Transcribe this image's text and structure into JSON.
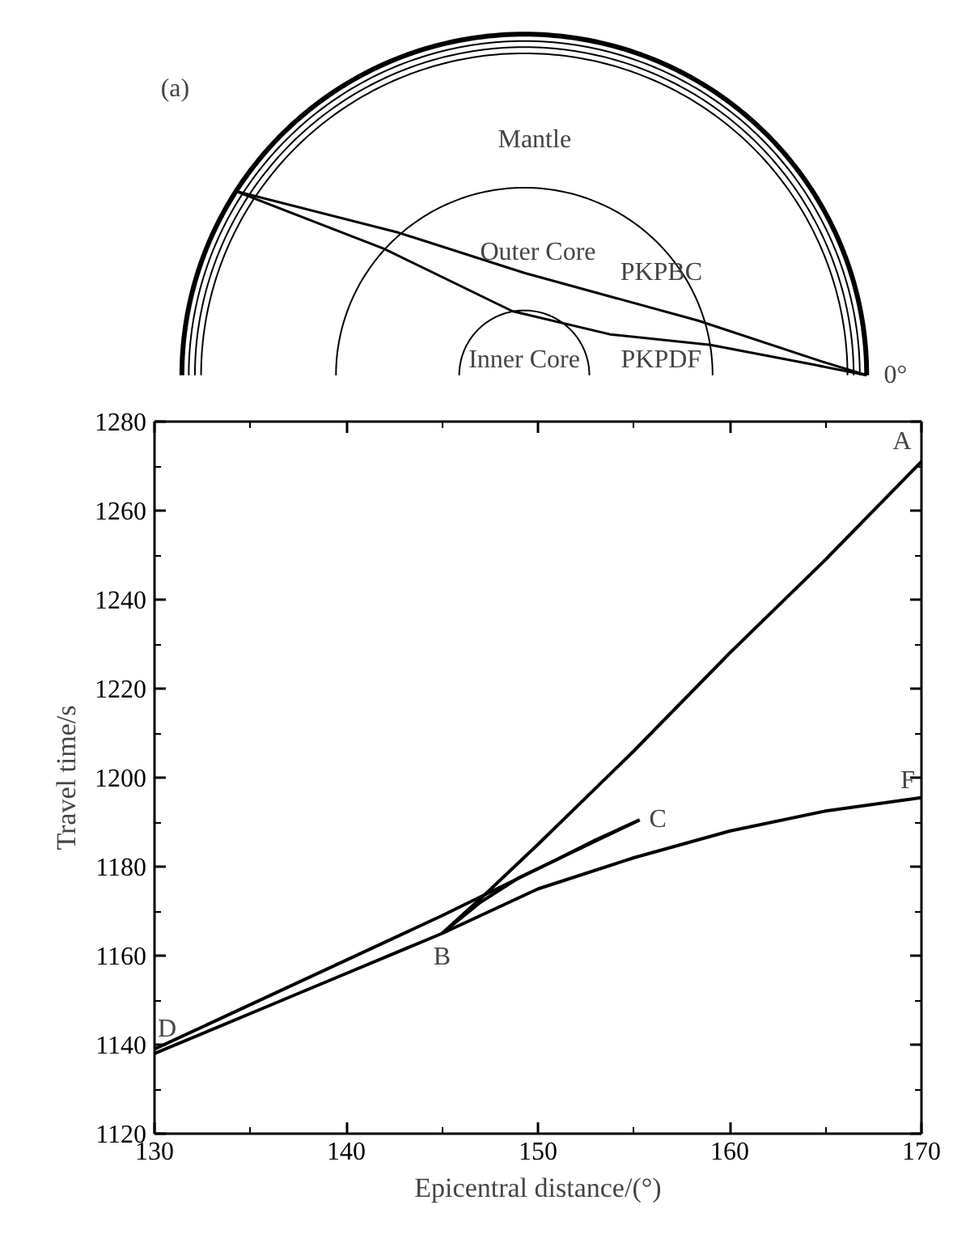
{
  "chart_data": [
    {
      "type": "other",
      "title": "(a)",
      "annotations": [
        "Mantle",
        "Outer Core",
        "Inner Core",
        "PKPBC",
        "PKPDF",
        "0°"
      ]
    },
    {
      "type": "line",
      "xlabel": "Epicentral distance/(°)",
      "ylabel": "Travel time/s",
      "xlim": [
        130,
        170
      ],
      "ylim": [
        1120,
        1280
      ],
      "xticks": [
        130,
        140,
        150,
        160,
        170
      ],
      "yticks": [
        1120,
        1140,
        1160,
        1180,
        1200,
        1220,
        1240,
        1260,
        1280
      ],
      "grid": false,
      "marker": "none",
      "line_style": "solid",
      "series": [
        {
          "color": "#000000",
          "x": [
            145,
            147.3,
            150,
            155,
            160,
            165,
            170
          ],
          "values": [
            1165,
            1174,
            1185,
            1206,
            1228,
            1249,
            1271
          ]
        },
        {
          "color": "#000000",
          "x": [
            145,
            147,
            149,
            150.7,
            153,
            155.3
          ],
          "values": [
            1165,
            1172,
            1177.5,
            1181,
            1186,
            1190.5
          ]
        },
        {
          "color": "#000000",
          "x": [
            130,
            145,
            150.7,
            155.3
          ],
          "values": [
            1139,
            1169,
            1181,
            1190.5
          ]
        },
        {
          "color": "#000000",
          "x": [
            130,
            135,
            140,
            145,
            150,
            155,
            160,
            165,
            170
          ],
          "values": [
            1138,
            1147,
            1156,
            1165,
            1175,
            1182,
            1188,
            1192.5,
            1195.5
          ]
        }
      ],
      "annotations": [
        {
          "text": "A",
          "x": 170,
          "y": 1271
        },
        {
          "text": "B",
          "x": 145,
          "y": 1165
        },
        {
          "text": "C",
          "x": 155.3,
          "y": 1190.5
        },
        {
          "text": "D",
          "x": 130,
          "y": 1139
        },
        {
          "text": "F",
          "x": 170,
          "y": 1195.5
        }
      ]
    }
  ]
}
